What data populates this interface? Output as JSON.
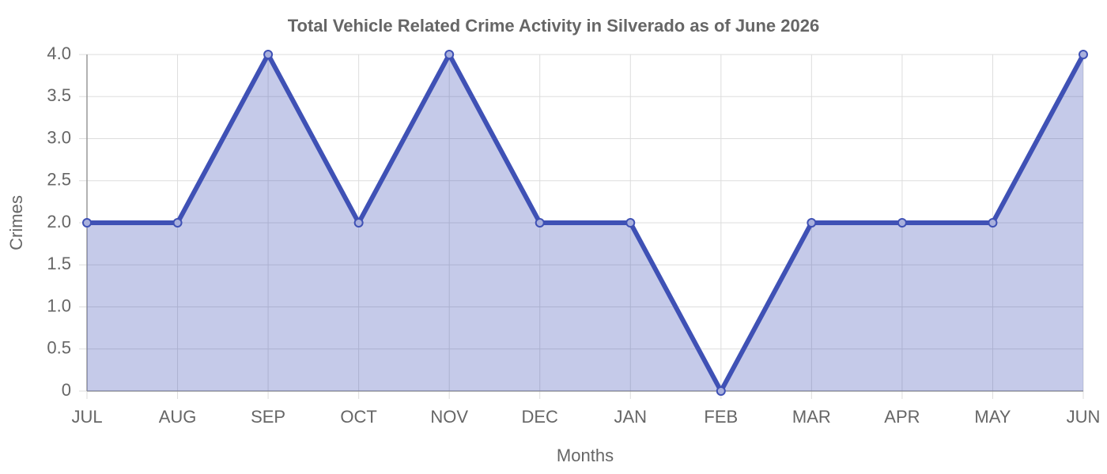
{
  "chart_data": {
    "type": "area",
    "title": "Total Vehicle Related Crime Activity in Silverado as of June 2026",
    "x_label": "Months",
    "y_label": "Crimes",
    "categories": [
      "JUL",
      "AUG",
      "SEP",
      "OCT",
      "NOV",
      "DEC",
      "JAN",
      "FEB",
      "MAR",
      "APR",
      "MAY",
      "JUN"
    ],
    "series": [
      {
        "name": "Crimes",
        "color": "#3f51b5",
        "values": [
          2,
          2,
          4,
          2,
          4,
          2,
          2,
          0,
          2,
          2,
          2,
          4
        ]
      }
    ],
    "ylim": [
      0,
      4
    ],
    "yticks": [
      0,
      0.5,
      {
        "value": 1,
        "label": "1.0"
      },
      1.5,
      {
        "value": 2,
        "label": "2.0"
      },
      2.5,
      {
        "value": 3,
        "label": "3.0"
      },
      3.5,
      {
        "value": 4,
        "label": "4.0"
      }
    ],
    "grid": true
  }
}
